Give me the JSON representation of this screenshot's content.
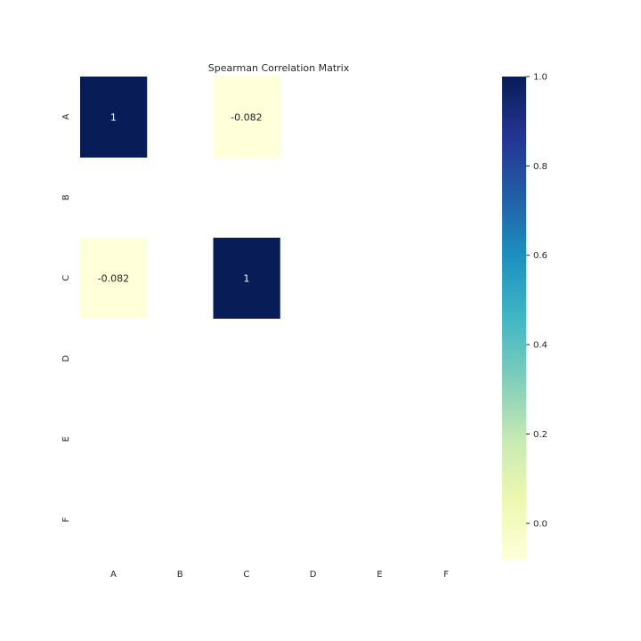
{
  "chart_data": {
    "type": "heatmap",
    "title": "Spearman Correlation Matrix",
    "xlabel": "",
    "ylabel": "",
    "x_labels": [
      "A",
      "B",
      "C",
      "D",
      "E",
      "F"
    ],
    "y_labels": [
      "A",
      "B",
      "C",
      "D",
      "E",
      "F"
    ],
    "values": [
      [
        1,
        null,
        -0.082,
        null,
        null,
        null
      ],
      [
        null,
        null,
        null,
        null,
        null,
        null
      ],
      [
        -0.082,
        null,
        1,
        null,
        null,
        null
      ],
      [
        null,
        null,
        null,
        null,
        null,
        null
      ],
      [
        null,
        null,
        null,
        null,
        null,
        null
      ],
      [
        null,
        null,
        null,
        null,
        null,
        null
      ]
    ],
    "annotations": [
      [
        "1",
        "",
        "-0.082",
        "",
        "",
        ""
      ],
      [
        "",
        "",
        "",
        "",
        "",
        ""
      ],
      [
        "-0.082",
        "",
        "1",
        "",
        "",
        ""
      ],
      [
        "",
        "",
        "",
        "",
        "",
        ""
      ],
      [
        "",
        "",
        "",
        "",
        "",
        ""
      ],
      [
        "",
        "",
        "",
        "",
        "",
        ""
      ]
    ],
    "colorbar": {
      "colormap": "YlGnBu",
      "range": [
        -0.082,
        1.0
      ],
      "ticks": [
        0.0,
        0.2,
        0.4,
        0.6,
        0.8,
        1.0
      ],
      "tick_labels": [
        "0.0",
        "0.2",
        "0.4",
        "0.6",
        "0.8",
        "1.0"
      ]
    },
    "grid": false,
    "missing_cells": "blank"
  }
}
